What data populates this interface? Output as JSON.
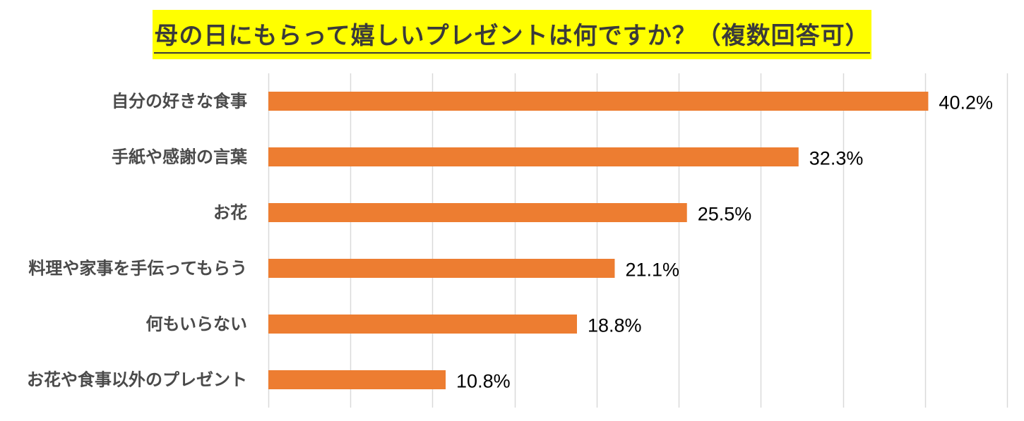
{
  "chart_data": {
    "type": "bar",
    "orientation": "horizontal",
    "title": "母の日にもらって嬉しいプレゼントは何ですか？（複数回答可）",
    "categories": [
      "自分の好きな食事",
      "手紙や感謝の言葉",
      "お花",
      "料理や家事を手伝ってもらう",
      "何もいらない",
      "お花や食事以外のプレゼント"
    ],
    "values": [
      40.2,
      32.3,
      25.5,
      21.1,
      18.8,
      10.8
    ],
    "value_labels": [
      "40.2%",
      "32.3%",
      "25.5%",
      "21.1%",
      "18.8%",
      "10.8%"
    ],
    "xlim": [
      0,
      45
    ],
    "x_grid_step": 5,
    "grid": true,
    "legend": "none",
    "bar_color": "#ed7d31",
    "title_background": "#ffff00"
  }
}
